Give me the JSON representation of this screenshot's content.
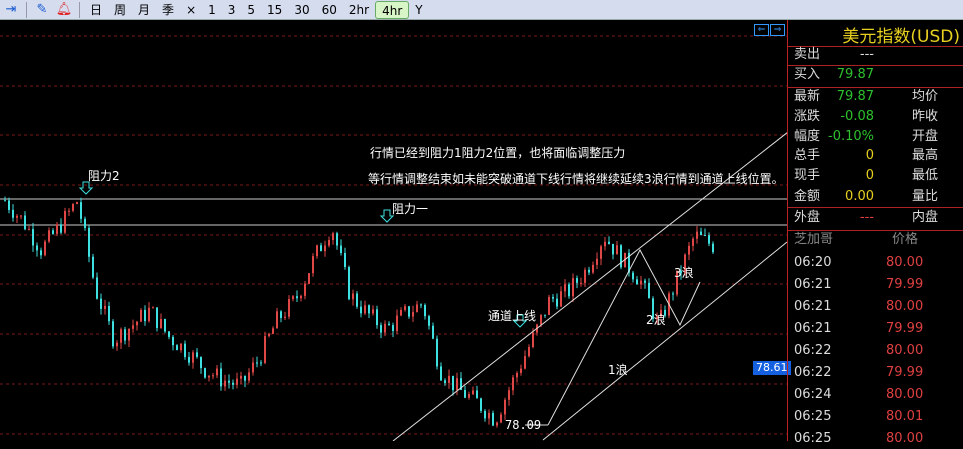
{
  "toolbar": {
    "icons": [
      "exit-icon",
      "draw-icon",
      "alarm-bell-icon"
    ],
    "periods": [
      "日",
      "周",
      "月",
      "季",
      "×",
      "1",
      "3",
      "5",
      "15",
      "30",
      "60",
      "2hr",
      "4hr",
      "Y"
    ],
    "active_period": "4hr"
  },
  "chart": {
    "annotations": {
      "resistance2": "阻力2",
      "resistance1": "阻力一",
      "note1": "行情已经到阻力1阻力2位置，也将面临调整压力",
      "note2": "等行情调整结束如未能突破通道下线行情将继续延续3浪行情到通道上线位置。",
      "channel_upper": "通道上线",
      "wave1": "1浪",
      "wave2": "2浪",
      "wave3": "3浪",
      "low_label": "78.09"
    },
    "current_price_tag": "78.61",
    "colors": {
      "up": "#e04848",
      "down": "#3fe0e0",
      "grid": "#7a1a1a",
      "lines": "#e0e0e0"
    }
  },
  "chart_data": {
    "type": "candlestick",
    "price_keypoints": [
      80.14,
      79.95,
      79.69,
      79.9,
      80.14,
      79.32,
      78.87,
      79.0,
      79.14,
      78.9,
      78.77,
      78.6,
      78.5,
      78.45,
      78.7,
      79.05,
      79.23,
      79.6,
      79.91,
      79.28,
      79.1,
      78.96,
      79.1,
      79.2,
      78.59,
      78.41,
      78.3,
      78.14,
      78.5,
      78.85,
      79.23,
      79.3,
      79.5,
      79.82,
      79.6,
      79.41,
      79.0,
      79.41,
      79.82,
      79.73
    ],
    "low": 78.09,
    "last": 78.61
  },
  "panel": {
    "title": "美元指数(USD)",
    "rows": [
      {
        "label": "卖出",
        "value": "---",
        "label2": ""
      },
      {
        "label": "买入",
        "value": "79.87",
        "label2": ""
      },
      {
        "label": "最新",
        "value": "79.87",
        "label2": "均价"
      },
      {
        "label": "涨跌",
        "value": "-0.08",
        "label2": "昨收"
      },
      {
        "label": "幅度",
        "value": "-0.10%",
        "label2": "开盘"
      },
      {
        "label": "总手",
        "value": "0",
        "label2": "最高"
      },
      {
        "label": "现手",
        "value": "0",
        "label2": "最低"
      },
      {
        "label": "金额",
        "value": "0.00",
        "label2": "量比"
      },
      {
        "label": "外盘",
        "value": "---",
        "label2": "内盘"
      }
    ],
    "ticks_header": {
      "market": "芝加哥",
      "price": "价格"
    },
    "ticks": [
      {
        "time": "06:20",
        "price": "80.00"
      },
      {
        "time": "06:21",
        "price": "79.99"
      },
      {
        "time": "06:21",
        "price": "80.00"
      },
      {
        "time": "06:21",
        "price": "79.99"
      },
      {
        "time": "06:22",
        "price": "80.00"
      },
      {
        "time": "06:22",
        "price": "79.99"
      },
      {
        "time": "06:24",
        "price": "80.00"
      },
      {
        "time": "06:25",
        "price": "80.01"
      },
      {
        "time": "06:25",
        "price": "80.00"
      }
    ]
  }
}
